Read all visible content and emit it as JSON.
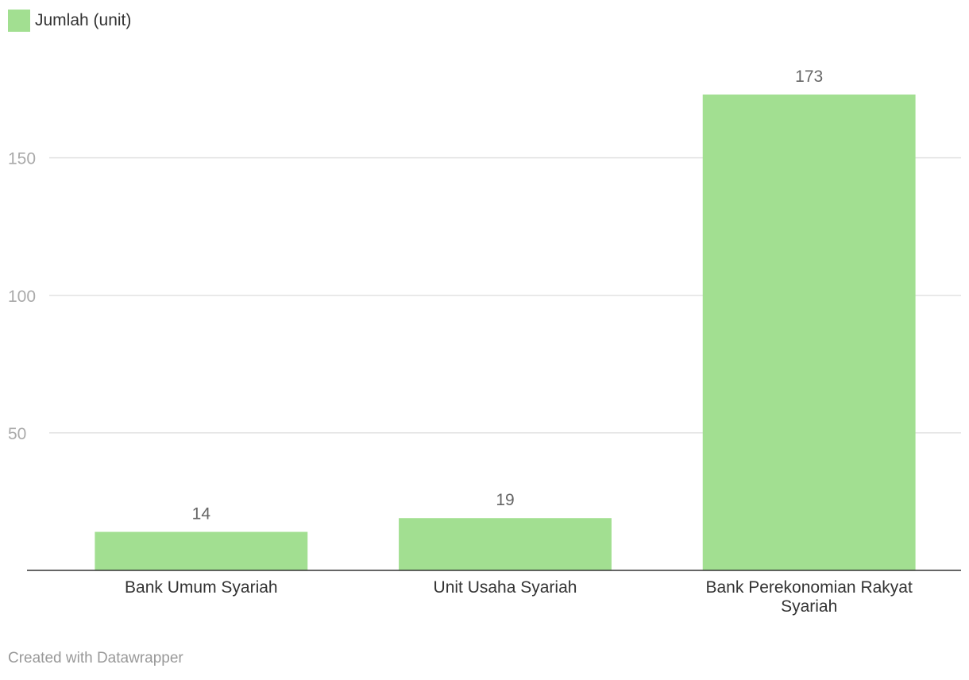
{
  "legend": {
    "label": "Jumlah (unit)"
  },
  "credit": "Created with Datawrapper",
  "colors": {
    "bar": "#a2df91",
    "grid": "#e2e2e2",
    "baseline": "#333333"
  },
  "chart_data": {
    "type": "bar",
    "categories": [
      [
        "Bank Umum Syariah"
      ],
      [
        "Unit Usaha Syariah"
      ],
      [
        "Bank Perekonomian Rakyat",
        "Syariah"
      ]
    ],
    "series": [
      {
        "name": "Jumlah (unit)",
        "values": [
          14,
          19,
          173
        ]
      }
    ],
    "y_ticks": [
      50,
      100,
      150
    ],
    "ylim": [
      0,
      173
    ],
    "grid": true,
    "legend_position": "top-left",
    "data_labels": true
  }
}
